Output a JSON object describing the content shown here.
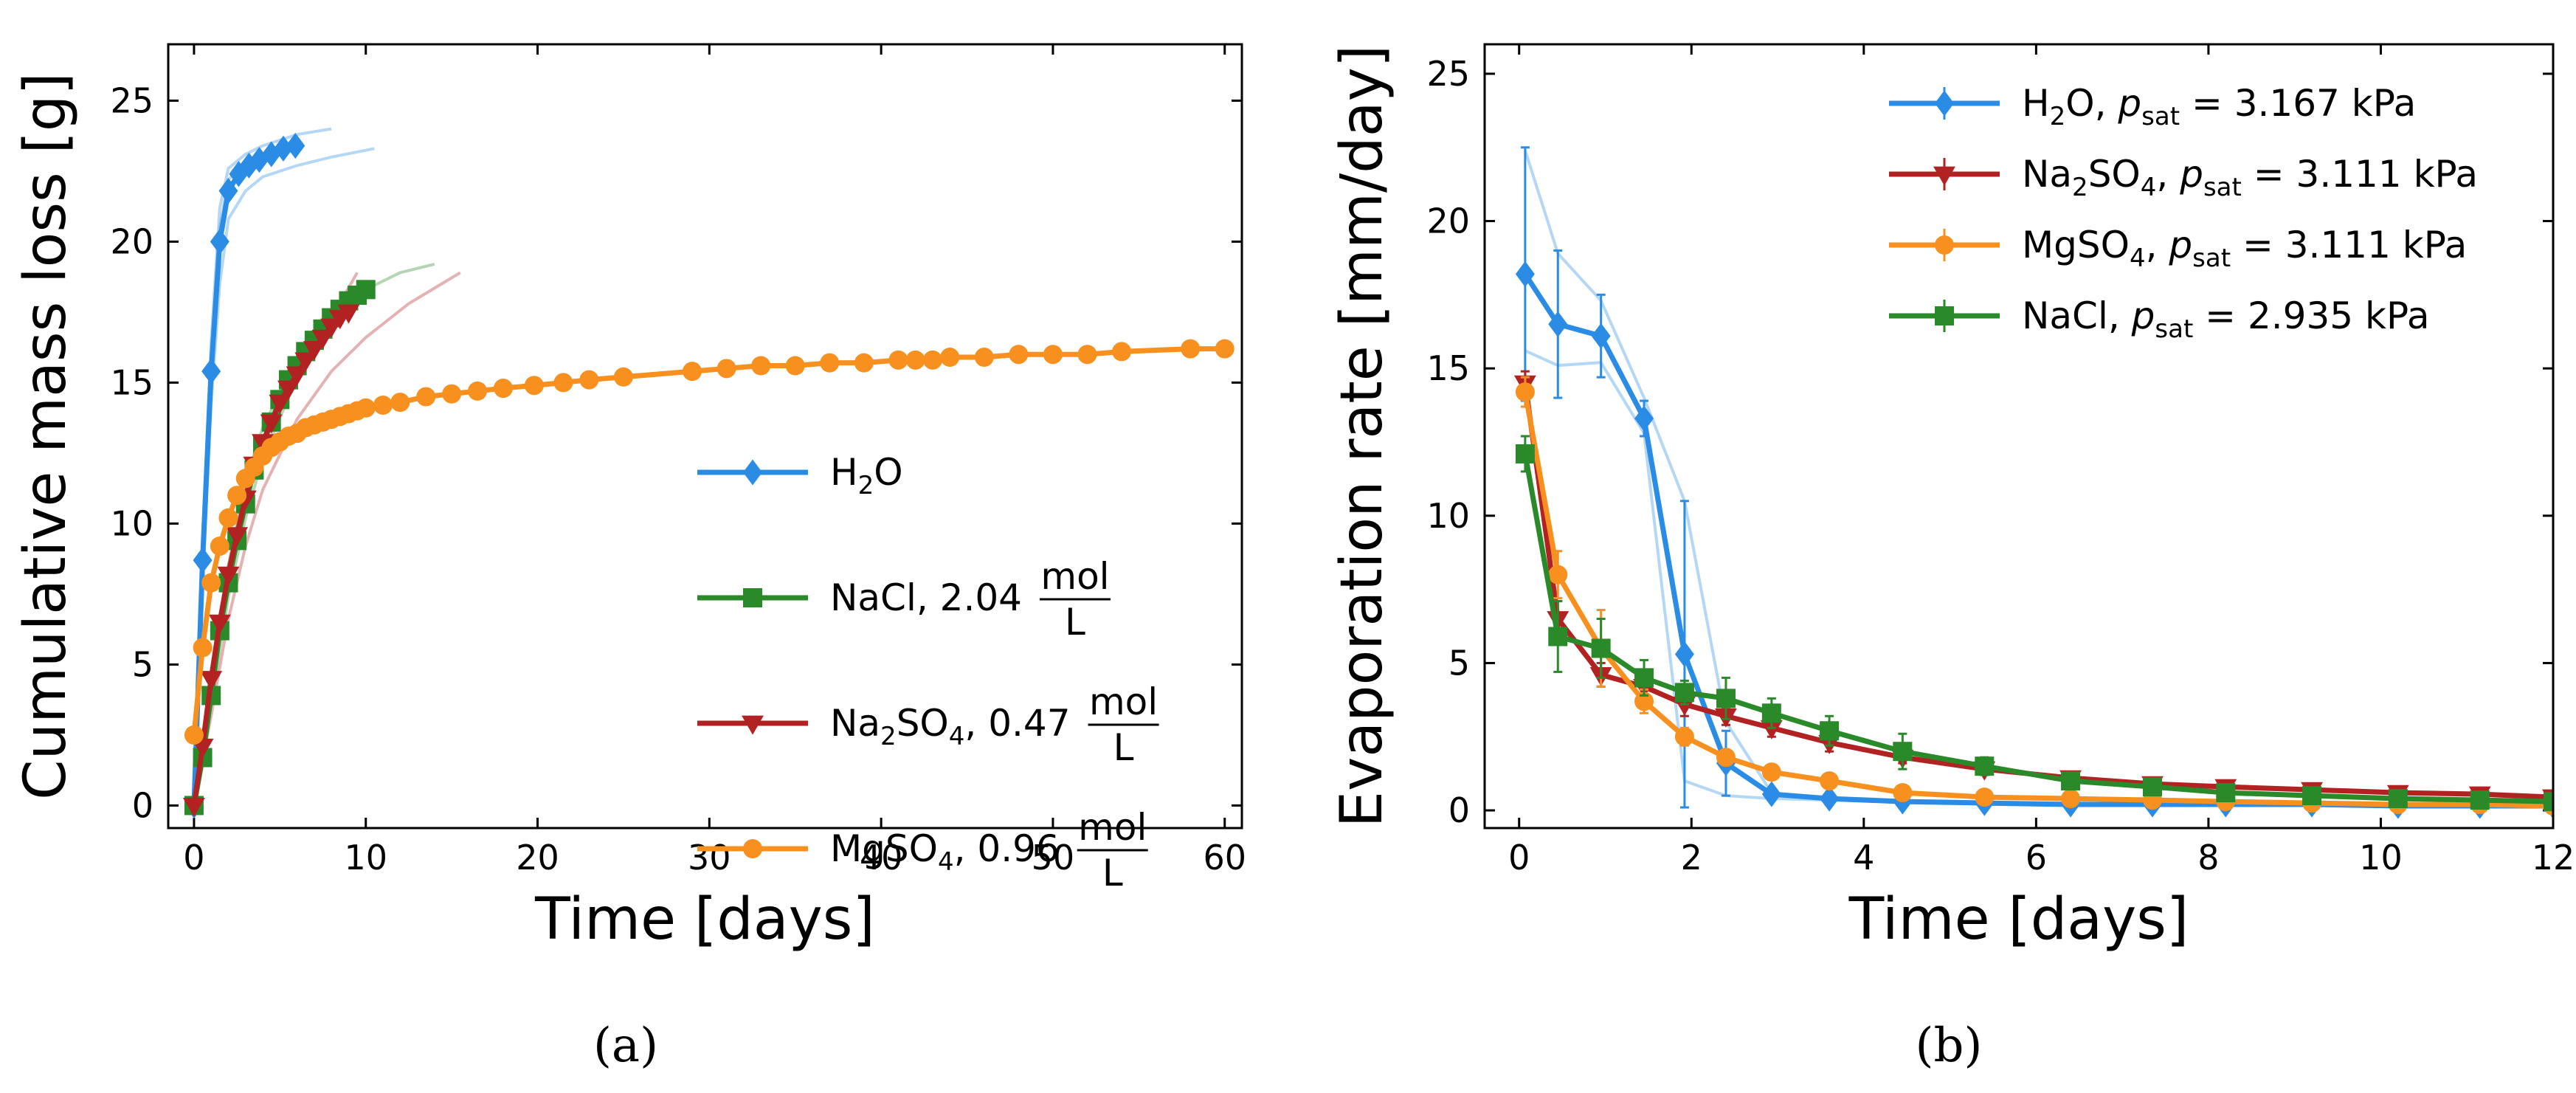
{
  "figure": {
    "panel_labels": [
      "(a)",
      "(b)"
    ]
  },
  "chart_data": [
    {
      "type": "line",
      "panel": "(a)",
      "title": "",
      "xlabel": "Time [days]",
      "ylabel": "Cumulative mass loss [g]",
      "xlim": [
        -1.5,
        61
      ],
      "ylim": [
        -0.8,
        27
      ],
      "xticks": [
        0,
        10,
        20,
        30,
        40,
        50,
        60
      ],
      "yticks": [
        0,
        5,
        10,
        15,
        20,
        25
      ],
      "legend_position": "center-right",
      "series": [
        {
          "name": "H2O",
          "legend": {
            "base": "H",
            "sub": "2",
            "rest": "O",
            "conc": "",
            "frac_num": "",
            "frac_den": ""
          },
          "color": "#2b8ce6",
          "marker": "diamond",
          "x": [
            0,
            0.5,
            1.0,
            1.5,
            2.0,
            2.6,
            3.2,
            3.8,
            4.5,
            5.2,
            5.9
          ],
          "y": [
            0,
            8.7,
            15.4,
            20.0,
            21.8,
            22.4,
            22.7,
            22.9,
            23.1,
            23.3,
            23.4
          ],
          "replicates": [
            {
              "x": [
                0,
                0.5,
                1.0,
                1.5,
                2,
                3,
                4,
                5,
                6,
                7,
                8
              ],
              "y": [
                0,
                9.5,
                16.5,
                21.2,
                22.6,
                23.1,
                23.4,
                23.6,
                23.8,
                23.9,
                24.0
              ]
            },
            {
              "x": [
                0,
                0.5,
                1.0,
                1.5,
                2,
                3,
                4,
                6,
                8,
                10.5
              ],
              "y": [
                0,
                7.8,
                14.3,
                18.5,
                20.8,
                21.8,
                22.3,
                22.7,
                23.0,
                23.3
              ]
            },
            {
              "x": [
                0,
                0.5,
                1.0,
                1.5,
                2,
                3,
                4,
                5,
                6
              ],
              "y": [
                0,
                8.9,
                15.8,
                20.5,
                22.2,
                22.8,
                23.1,
                23.3,
                23.5
              ]
            }
          ]
        },
        {
          "name": "NaCl, 2.04 mol/L",
          "legend": {
            "base": "NaCl, 2.04",
            "sub": "",
            "rest": "",
            "conc": "",
            "frac_num": "mol",
            "frac_den": "L"
          },
          "color": "#2a8a2a",
          "marker": "square",
          "x": [
            0,
            0.5,
            1.0,
            1.5,
            2.0,
            2.5,
            3.0,
            3.5,
            4.0,
            4.5,
            5.0,
            5.5,
            6.0,
            6.5,
            7.0,
            7.5,
            8.0,
            8.5,
            9.0,
            9.5,
            10.0
          ],
          "y": [
            0,
            1.7,
            3.9,
            6.2,
            7.9,
            9.4,
            10.7,
            11.9,
            12.8,
            13.6,
            14.4,
            15.1,
            15.6,
            16.1,
            16.5,
            16.9,
            17.3,
            17.6,
            17.9,
            18.1,
            18.3
          ],
          "replicates": [
            {
              "x": [
                0,
                1,
                2,
                3,
                4,
                6,
                8,
                10,
                12,
                14
              ],
              "y": [
                0,
                4.3,
                8.5,
                11.5,
                13.4,
                15.9,
                17.4,
                18.3,
                18.9,
                19.2
              ]
            },
            {
              "x": [
                0,
                1,
                2,
                3,
                4,
                6,
                8,
                9.5
              ],
              "y": [
                0,
                3.6,
                7.4,
                10.2,
                12.3,
                15.2,
                17.4,
                18.4
              ]
            }
          ]
        },
        {
          "name": "Na2SO4, 0.47 mol/L",
          "legend": {
            "base": "Na",
            "sub": "2",
            "rest": "SO",
            "sub2": "4",
            "conc": ", 0.47",
            "frac_num": "mol",
            "frac_den": "L"
          },
          "color": "#b22222",
          "marker": "triangle-down",
          "x": [
            0,
            0.5,
            1.0,
            1.5,
            2.0,
            2.5,
            3.0,
            3.5,
            4.0,
            4.5,
            5.0,
            5.5,
            6.0,
            6.5,
            7.0,
            7.5,
            8.0,
            8.5,
            9.0
          ],
          "y": [
            0,
            2.1,
            4.5,
            6.5,
            8.2,
            9.6,
            10.9,
            12.1,
            12.9,
            13.6,
            14.3,
            14.8,
            15.3,
            15.8,
            16.2,
            16.6,
            17.0,
            17.3,
            17.5
          ],
          "replicates": [
            {
              "x": [
                0,
                1,
                2,
                3,
                4,
                6,
                8,
                10,
                12.5,
                15.5
              ],
              "y": [
                0,
                3.2,
                6.6,
                9.2,
                11.2,
                13.7,
                15.4,
                16.6,
                17.8,
                18.9
              ]
            },
            {
              "x": [
                0,
                1,
                2,
                3,
                4,
                6,
                8,
                9.5
              ],
              "y": [
                0,
                4.7,
                8.5,
                11.2,
                12.9,
                15.3,
                17.3,
                18.9
              ]
            }
          ]
        },
        {
          "name": "MgSO4, 0.96 mol/L",
          "legend": {
            "base": "MgSO",
            "sub": "4",
            "rest": "",
            "conc": ", 0.96",
            "frac_num": "mol",
            "frac_den": "L"
          },
          "color": "#f7901e",
          "marker": "circle",
          "x": [
            0,
            0.5,
            1,
            1.5,
            2,
            2.5,
            3,
            3.5,
            4,
            4.5,
            5,
            5.5,
            6,
            6.5,
            7,
            7.5,
            8,
            8.5,
            9,
            9.5,
            10,
            11,
            12,
            13.5,
            15,
            16.5,
            18,
            19.8,
            21.5,
            23,
            25,
            29,
            31,
            33,
            35,
            37,
            39,
            41,
            42,
            43,
            44,
            46,
            48,
            50,
            52,
            54,
            58,
            60
          ],
          "y": [
            2.5,
            5.6,
            7.9,
            9.2,
            10.2,
            11.0,
            11.6,
            12.0,
            12.4,
            12.7,
            12.9,
            13.1,
            13.2,
            13.4,
            13.5,
            13.6,
            13.7,
            13.8,
            13.9,
            14.0,
            14.1,
            14.2,
            14.3,
            14.5,
            14.6,
            14.7,
            14.8,
            14.9,
            15.0,
            15.1,
            15.2,
            15.4,
            15.5,
            15.6,
            15.6,
            15.7,
            15.7,
            15.8,
            15.8,
            15.8,
            15.9,
            15.9,
            16.0,
            16.0,
            16.0,
            16.1,
            16.2,
            16.2
          ],
          "replicates": []
        }
      ]
    },
    {
      "type": "line",
      "panel": "(b)",
      "title": "",
      "xlabel": "Time [days]",
      "ylabel": "Evaporation rate [mm/day]",
      "xlim": [
        -0.4,
        12
      ],
      "ylim": [
        -0.6,
        26
      ],
      "xticks": [
        0,
        2,
        4,
        6,
        8,
        10,
        12
      ],
      "yticks": [
        0,
        5,
        10,
        15,
        20,
        25
      ],
      "legend_position": "top-right",
      "series": [
        {
          "name": "H2O, p_sat = 3.167 kPa",
          "legend": {
            "base": "H",
            "sub": "2",
            "rest": "O, ",
            "p": "p",
            "psub": "sat",
            "value": " = 3.167 kPa"
          },
          "color": "#2b8ce6",
          "marker": "diamond",
          "x": [
            0.07,
            0.45,
            0.95,
            1.45,
            1.92,
            2.4,
            2.93,
            3.6,
            4.45,
            5.4,
            6.4,
            7.35,
            8.2,
            9.2,
            10.2,
            11.15,
            12.0
          ],
          "y": [
            18.2,
            16.5,
            16.1,
            13.3,
            5.3,
            1.6,
            0.55,
            0.4,
            0.3,
            0.25,
            0.2,
            0.2,
            0.2,
            0.2,
            0.15,
            0.15,
            0.15
          ],
          "err": [
            4.3,
            2.5,
            1.4,
            0.6,
            5.2,
            1.1,
            0.1,
            0.1,
            0.1,
            0.05,
            0.05,
            0.05,
            0.05,
            0.05,
            0.05,
            0.05,
            0.05
          ],
          "replicates": [
            {
              "x": [
                0.07,
                0.45,
                0.95,
                1.45,
                1.92,
                2.4,
                2.93,
                3.6,
                4.45,
                6.4,
                12
              ],
              "y": [
                22.4,
                18.9,
                17.3,
                14.0,
                10.5,
                3.0,
                0.6,
                0.4,
                0.3,
                0.25,
                0.15
              ]
            },
            {
              "x": [
                0.07,
                0.45,
                0.95,
                1.45,
                1.92,
                2.4,
                2.93,
                3.6,
                4.45,
                6.4,
                12
              ],
              "y": [
                15.6,
                15.1,
                15.2,
                12.8,
                1.0,
                0.5,
                0.4,
                0.35,
                0.3,
                0.2,
                0.15
              ]
            }
          ]
        },
        {
          "name": "Na2SO4, p_sat = 3.111 kPa",
          "legend": {
            "base": "Na",
            "sub": "2",
            "rest": "SO",
            "sub2": "4",
            "rest2": ", ",
            "p": "p",
            "psub": "sat",
            "value": " = 3.111 kPa"
          },
          "color": "#b22222",
          "marker": "triangle-down",
          "x": [
            0.07,
            0.45,
            0.95,
            1.45,
            1.92,
            2.4,
            2.93,
            3.6,
            4.45,
            5.4,
            6.4,
            7.35,
            8.2,
            9.2,
            10.2,
            11.15,
            12.0
          ],
          "y": [
            14.5,
            6.5,
            4.6,
            4.2,
            3.6,
            3.2,
            2.8,
            2.3,
            1.8,
            1.4,
            1.1,
            0.9,
            0.8,
            0.7,
            0.6,
            0.55,
            0.45
          ],
          "err": [
            0.4,
            0.6,
            0.4,
            0.4,
            0.4,
            0.3,
            0.3,
            0.3,
            0.2,
            0.15,
            0.15,
            0.1,
            0.1,
            0.1,
            0.1,
            0.1,
            0.1
          ],
          "replicates": []
        },
        {
          "name": "MgSO4, p_sat = 3.111 kPa",
          "legend": {
            "base": "MgSO",
            "sub": "4",
            "rest": ", ",
            "p": "p",
            "psub": "sat",
            "value": " = 3.111 kPa"
          },
          "color": "#f7901e",
          "marker": "circle",
          "x": [
            0.07,
            0.45,
            0.95,
            1.45,
            1.92,
            2.4,
            2.93,
            3.6,
            4.45,
            5.4,
            6.4,
            7.35,
            8.2,
            9.2,
            10.2,
            11.15,
            12.0
          ],
          "y": [
            14.2,
            8.0,
            5.5,
            3.7,
            2.5,
            1.8,
            1.3,
            1.0,
            0.6,
            0.45,
            0.4,
            0.35,
            0.3,
            0.25,
            0.2,
            0.2,
            0.15
          ],
          "err": [
            0.5,
            0.8,
            1.3,
            0.4,
            0.3,
            0.2,
            0.15,
            0.1,
            0.1,
            0.05,
            0.05,
            0.05,
            0.05,
            0.05,
            0.05,
            0.05,
            0.05
          ],
          "replicates": []
        },
        {
          "name": "NaCl, p_sat = 2.935 kPa",
          "legend": {
            "base": "NaCl, ",
            "sub": "",
            "rest": "",
            "p": "p",
            "psub": "sat",
            "value": " = 2.935 kPa"
          },
          "color": "#2a8a2a",
          "marker": "square",
          "x": [
            0.07,
            0.45,
            0.95,
            1.45,
            1.92,
            2.4,
            2.93,
            3.6,
            4.45,
            5.4,
            6.4,
            7.35,
            8.2,
            9.2,
            10.2,
            11.15,
            12.0
          ],
          "y": [
            12.1,
            5.9,
            5.5,
            4.5,
            4.0,
            3.8,
            3.3,
            2.7,
            2.0,
            1.5,
            1.0,
            0.8,
            0.6,
            0.5,
            0.4,
            0.35,
            0.3
          ],
          "err": [
            0.6,
            1.2,
            1.0,
            0.6,
            0.4,
            0.7,
            0.5,
            0.5,
            0.6,
            0.3,
            0.2,
            0.2,
            0.15,
            0.1,
            0.1,
            0.1,
            0.1
          ],
          "replicates": []
        }
      ]
    }
  ]
}
